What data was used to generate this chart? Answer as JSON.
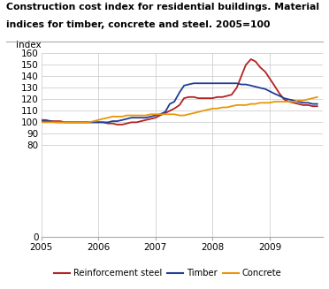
{
  "title_line1": "Construction cost index for residential buildings. Material",
  "title_line2": "indices for timber, concrete and steel. 2005=100",
  "ylabel": "Index",
  "ylim": [
    0,
    160
  ],
  "yticks": [
    0,
    80,
    90,
    100,
    110,
    120,
    130,
    140,
    150,
    160
  ],
  "xlim": [
    2005.0,
    2009.92
  ],
  "xticks": [
    2005,
    2006,
    2007,
    2008,
    2009
  ],
  "background_color": "#ffffff",
  "grid_color": "#d0d0d0",
  "steel_color": "#b22222",
  "timber_color": "#1f3d99",
  "concrete_color": "#e8960a",
  "steel_x": [
    2005.0,
    2005.08,
    2005.17,
    2005.25,
    2005.33,
    2005.42,
    2005.5,
    2005.58,
    2005.67,
    2005.75,
    2005.83,
    2005.92,
    2006.0,
    2006.08,
    2006.17,
    2006.25,
    2006.33,
    2006.42,
    2006.5,
    2006.58,
    2006.67,
    2006.75,
    2006.83,
    2006.92,
    2007.0,
    2007.08,
    2007.17,
    2007.25,
    2007.33,
    2007.42,
    2007.5,
    2007.58,
    2007.67,
    2007.75,
    2007.83,
    2007.92,
    2008.0,
    2008.08,
    2008.17,
    2008.25,
    2008.33,
    2008.42,
    2008.5,
    2008.58,
    2008.67,
    2008.75,
    2008.83,
    2008.92,
    2009.0,
    2009.08,
    2009.17,
    2009.25,
    2009.33,
    2009.42,
    2009.5,
    2009.58,
    2009.67,
    2009.75,
    2009.83
  ],
  "steel_y": [
    102,
    102,
    101,
    101,
    101,
    100,
    100,
    100,
    100,
    100,
    100,
    100,
    100,
    100,
    99,
    99,
    98,
    98,
    99,
    100,
    100,
    101,
    102,
    103,
    104,
    106,
    108,
    110,
    112,
    115,
    121,
    122,
    122,
    121,
    121,
    121,
    121,
    122,
    122,
    123,
    124,
    130,
    140,
    150,
    155,
    153,
    148,
    144,
    138,
    132,
    125,
    120,
    118,
    117,
    116,
    115,
    115,
    114,
    114
  ],
  "timber_x": [
    2005.0,
    2005.08,
    2005.17,
    2005.25,
    2005.33,
    2005.42,
    2005.5,
    2005.58,
    2005.67,
    2005.75,
    2005.83,
    2005.92,
    2006.0,
    2006.08,
    2006.17,
    2006.25,
    2006.33,
    2006.42,
    2006.5,
    2006.58,
    2006.67,
    2006.75,
    2006.83,
    2006.92,
    2007.0,
    2007.08,
    2007.17,
    2007.25,
    2007.33,
    2007.42,
    2007.5,
    2007.58,
    2007.67,
    2007.75,
    2007.83,
    2007.92,
    2008.0,
    2008.08,
    2008.17,
    2008.25,
    2008.33,
    2008.42,
    2008.5,
    2008.58,
    2008.67,
    2008.75,
    2008.83,
    2008.92,
    2009.0,
    2009.08,
    2009.17,
    2009.25,
    2009.33,
    2009.42,
    2009.5,
    2009.58,
    2009.67,
    2009.75,
    2009.83
  ],
  "timber_y": [
    101,
    101,
    101,
    100,
    100,
    100,
    100,
    100,
    100,
    100,
    100,
    100,
    100,
    100,
    100,
    101,
    101,
    102,
    103,
    104,
    104,
    104,
    104,
    105,
    106,
    107,
    109,
    116,
    118,
    126,
    132,
    133,
    134,
    134,
    134,
    134,
    134,
    134,
    134,
    134,
    134,
    134,
    133,
    133,
    132,
    131,
    130,
    129,
    127,
    125,
    123,
    121,
    120,
    119,
    118,
    117,
    117,
    116,
    116
  ],
  "concrete_x": [
    2005.0,
    2005.08,
    2005.17,
    2005.25,
    2005.33,
    2005.42,
    2005.5,
    2005.58,
    2005.67,
    2005.75,
    2005.83,
    2005.92,
    2006.0,
    2006.08,
    2006.17,
    2006.25,
    2006.33,
    2006.42,
    2006.5,
    2006.58,
    2006.67,
    2006.75,
    2006.83,
    2006.92,
    2007.0,
    2007.08,
    2007.17,
    2007.25,
    2007.33,
    2007.42,
    2007.5,
    2007.58,
    2007.67,
    2007.75,
    2007.83,
    2007.92,
    2008.0,
    2008.08,
    2008.17,
    2008.25,
    2008.33,
    2008.42,
    2008.5,
    2008.58,
    2008.67,
    2008.75,
    2008.83,
    2008.92,
    2009.0,
    2009.08,
    2009.17,
    2009.25,
    2009.33,
    2009.42,
    2009.5,
    2009.58,
    2009.67,
    2009.75,
    2009.83
  ],
  "concrete_y": [
    100,
    100,
    100,
    100,
    100,
    100,
    100,
    100,
    100,
    100,
    100,
    101,
    102,
    103,
    104,
    105,
    105,
    105,
    106,
    106,
    106,
    106,
    106,
    107,
    107,
    107,
    107,
    107,
    107,
    106,
    106,
    107,
    108,
    109,
    110,
    111,
    112,
    112,
    113,
    113,
    114,
    115,
    115,
    115,
    116,
    116,
    117,
    117,
    117,
    118,
    118,
    118,
    118,
    118,
    119,
    119,
    120,
    121,
    122
  ]
}
